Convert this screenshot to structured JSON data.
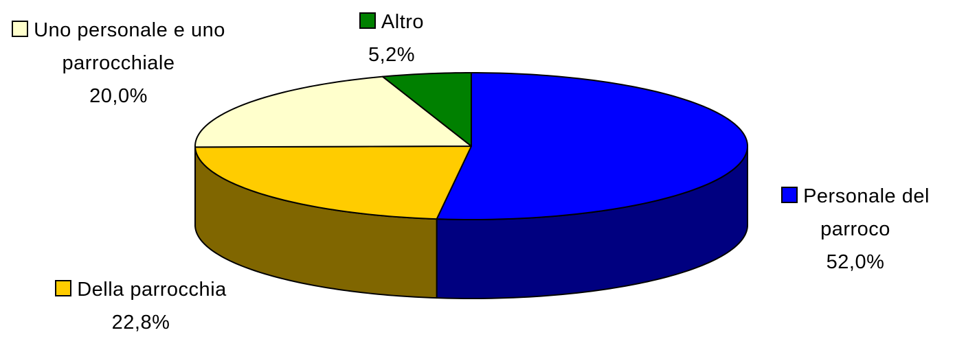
{
  "chart_data": {
    "type": "pie3d",
    "categories": [
      "Personale del parroco",
      "Della parrocchia",
      "Uno personale e uno parrocchiale",
      "Altro"
    ],
    "values": [
      52.0,
      22.8,
      20.0,
      5.2
    ],
    "value_labels": [
      "52,0%",
      "22,8%",
      "20,0%",
      "5,2%"
    ],
    "colors": [
      "#0000ff",
      "#ffcc00",
      "#ffffcc",
      "#008000"
    ],
    "start": "top",
    "direction": "clockwise"
  }
}
